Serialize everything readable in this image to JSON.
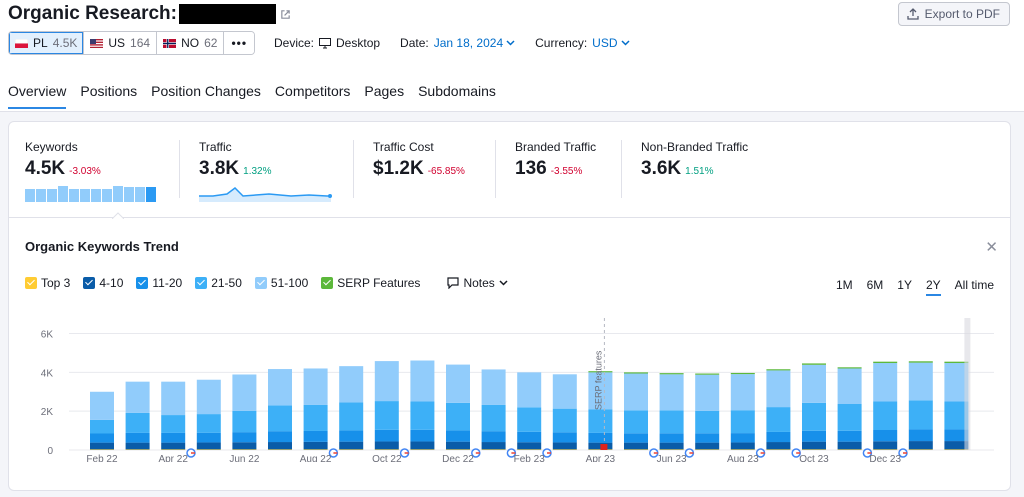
{
  "header": {
    "title": "Organic Research:",
    "export_label": "Export to PDF"
  },
  "databases": [
    {
      "code": "PL",
      "count": "4.5K",
      "active": true
    },
    {
      "code": "US",
      "count": "164",
      "active": false
    },
    {
      "code": "NO",
      "count": "62",
      "active": false
    }
  ],
  "more_label": "•••",
  "options": {
    "device_label": "Device:",
    "device_value": "Desktop",
    "date_label": "Date:",
    "date_value": "Jan 18, 2024",
    "currency_label": "Currency:",
    "currency_value": "USD"
  },
  "tabs": [
    "Overview",
    "Positions",
    "Position Changes",
    "Competitors",
    "Pages",
    "Subdomains"
  ],
  "metrics": [
    {
      "label": "Keywords",
      "value": "4.5K",
      "delta": "-3.03%",
      "trend": "neg"
    },
    {
      "label": "Traffic",
      "value": "3.8K",
      "delta": "1.32%",
      "trend": "pos"
    },
    {
      "label": "Traffic Cost",
      "value": "$1.2K",
      "delta": "-65.85%",
      "trend": "neg"
    },
    {
      "label": "Branded Traffic",
      "value": "136",
      "delta": "-3.55%",
      "trend": "neg"
    },
    {
      "label": "Non-Branded Traffic",
      "value": "3.6K",
      "delta": "1.51%",
      "trend": "pos"
    }
  ],
  "trend": {
    "title": "Organic Keywords Trend",
    "legend": [
      {
        "label": "Top 3",
        "color": "#ffcc33"
      },
      {
        "label": "4-10",
        "color": "#0a5ca8"
      },
      {
        "label": "11-20",
        "color": "#1790ea"
      },
      {
        "label": "21-50",
        "color": "#3db0f7"
      },
      {
        "label": "51-100",
        "color": "#91ccfb"
      },
      {
        "label": "SERP Features",
        "color": "#5cb83b"
      }
    ],
    "notes_label": "Notes",
    "ranges": [
      "1M",
      "6M",
      "1Y",
      "2Y",
      "All time"
    ],
    "active_range": "2Y",
    "annotation": "SERP features"
  },
  "chart_data": {
    "type": "bar",
    "stacked": true,
    "y_ticks": [
      "0",
      "2K",
      "4K",
      "6K"
    ],
    "ylim": [
      0,
      6800
    ],
    "x_ticks": [
      "Feb 22",
      "Apr 22",
      "Jun 22",
      "Aug 22",
      "Oct 22",
      "Dec 22",
      "Feb 23",
      "Apr 23",
      "Jun 23",
      "Aug 23",
      "Oct 23",
      "Dec 23"
    ],
    "series": [
      {
        "name": "Top 3",
        "values": [
          30,
          30,
          30,
          30,
          30,
          30,
          30,
          30,
          30,
          30,
          30,
          30,
          30,
          30,
          30,
          30,
          30,
          30,
          30,
          30,
          30,
          30,
          30,
          30,
          30
        ]
      },
      {
        "name": "4-10",
        "values": [
          350,
          350,
          350,
          360,
          370,
          380,
          390,
          400,
          410,
          410,
          400,
          380,
          370,
          360,
          350,
          350,
          350,
          350,
          360,
          380,
          400,
          400,
          420,
          430,
          430
        ]
      },
      {
        "name": "11-20",
        "values": [
          470,
          500,
          500,
          500,
          520,
          560,
          560,
          580,
          600,
          600,
          580,
          560,
          540,
          520,
          500,
          480,
          480,
          480,
          480,
          520,
          560,
          560,
          580,
          600,
          600
        ]
      },
      {
        "name": "21-50",
        "values": [
          700,
          1030,
          920,
          960,
          1100,
          1330,
          1340,
          1440,
          1480,
          1460,
          1420,
          1350,
          1260,
          1220,
          1220,
          1180,
          1180,
          1160,
          1180,
          1280,
          1440,
          1380,
          1470,
          1500,
          1440
        ]
      },
      {
        "name": "51-100",
        "values": [
          1450,
          1610,
          1720,
          1770,
          1870,
          1870,
          1880,
          1870,
          2060,
          2110,
          1970,
          1830,
          1800,
          1770,
          1900,
          1900,
          1860,
          1860,
          1860,
          1890,
          1960,
          1830,
          1980,
          1940,
          1980
        ]
      },
      {
        "name": "SERP Features",
        "values": [
          0,
          0,
          0,
          0,
          0,
          0,
          0,
          0,
          0,
          0,
          0,
          0,
          0,
          0,
          60,
          60,
          60,
          60,
          60,
          60,
          70,
          60,
          70,
          70,
          70
        ]
      }
    ],
    "google_markers": [
      3,
      7,
      9,
      11,
      12,
      13,
      16,
      17,
      19,
      20,
      22,
      23
    ]
  }
}
